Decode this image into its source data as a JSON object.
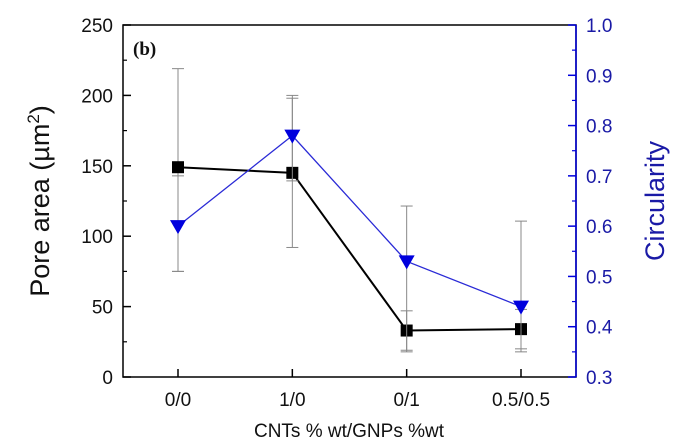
{
  "chart_data": {
    "type": "line",
    "panel_label": "(b)",
    "categories": [
      "0/0",
      "1/0",
      "0/1",
      "0.5/0.5"
    ],
    "xlabel": "CNTs % wt/GNPs %wt",
    "ylabel": "Pore area (µm²)",
    "ylabel_main": "Pore area (µm",
    "ylabel_sup": "2",
    "ylabel_close": ")",
    "y2label": "Circularity",
    "ylim": [
      0,
      250
    ],
    "y2lim": [
      0.3,
      1.0
    ],
    "yticks": [
      "0",
      "50",
      "100",
      "150",
      "200",
      "250"
    ],
    "y2ticks": [
      "0.3",
      "0.4",
      "0.5",
      "0.6",
      "0.7",
      "0.8",
      "0.9",
      "1.0"
    ],
    "grid": false,
    "series": [
      {
        "axis": "left",
        "marker": "square",
        "color": "#000000",
        "values": [
          149,
          145,
          33,
          34
        ],
        "err_low": [
          75,
          92,
          19,
          20
        ],
        "err_high": [
          219,
          198,
          47,
          48
        ]
      },
      {
        "axis": "right",
        "marker": "triangle-down",
        "color": "#0000dd",
        "values": [
          0.6,
          0.78,
          0.53,
          0.44
        ],
        "err_low": [
          0.51,
          0.69,
          0.35,
          0.35
        ],
        "err_high": [
          0.7,
          0.86,
          0.64,
          0.61
        ]
      }
    ]
  }
}
